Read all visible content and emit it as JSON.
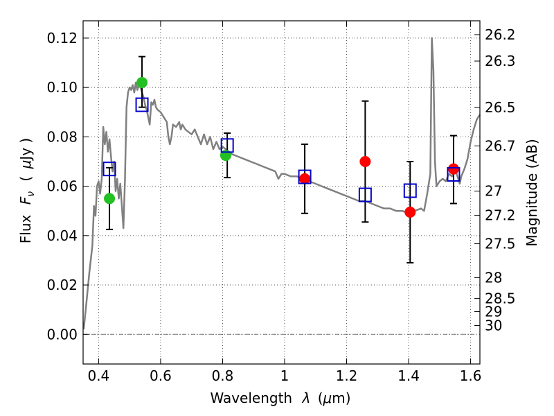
{
  "chart_data": {
    "type": "scatter",
    "xlabel_main": "Wavelength",
    "xlabel_symbol": "λ",
    "xlabel_unit_open": "(",
    "xlabel_unit_mu": "μ",
    "xlabel_unit_rest": "m)",
    "ylabel_main": "Flux",
    "ylabel_symbol": "F",
    "ylabel_subscript": "ν",
    "ylabel_unit_open": "(",
    "ylabel_unit_mu": "μ",
    "ylabel_unit_rest": "Jy )",
    "y2label": "Magnitude (AB)",
    "xlim": [
      0.35,
      1.63
    ],
    "ylim": [
      -0.012,
      0.127
    ],
    "grid": true,
    "x_ticks": [
      {
        "value": 0.4,
        "label": "0.4"
      },
      {
        "value": 0.6,
        "label": "0.6"
      },
      {
        "value": 0.8,
        "label": "0.8"
      },
      {
        "value": 1.0,
        "label": "1"
      },
      {
        "value": 1.2,
        "label": "1.2"
      },
      {
        "value": 1.4,
        "label": "1.4"
      },
      {
        "value": 1.6,
        "label": "1.6"
      }
    ],
    "y_ticks": [
      {
        "value": 0.0,
        "label": "0.00"
      },
      {
        "value": 0.02,
        "label": "0.02"
      },
      {
        "value": 0.04,
        "label": "0.04"
      },
      {
        "value": 0.06,
        "label": "0.06"
      },
      {
        "value": 0.08,
        "label": "0.08"
      },
      {
        "value": 0.1,
        "label": "0.10"
      },
      {
        "value": 0.12,
        "label": "0.12"
      }
    ],
    "mag_ticks": [
      {
        "flux": 0.1214,
        "label": "26.2"
      },
      {
        "flux": 0.1107,
        "label": "26.3"
      },
      {
        "flux": 0.0919,
        "label": "26.5"
      },
      {
        "flux": 0.0763,
        "label": "26.7"
      },
      {
        "flux": 0.058,
        "label": "27"
      },
      {
        "flux": 0.0482,
        "label": "27.2"
      },
      {
        "flux": 0.0367,
        "label": "27.5"
      },
      {
        "flux": 0.023,
        "label": "28"
      },
      {
        "flux": 0.0145,
        "label": "28.5"
      },
      {
        "flux": 0.0092,
        "label": "29"
      },
      {
        "flux": 0.0036,
        "label": "30"
      }
    ],
    "series": [
      {
        "name": "model SED",
        "kind": "line",
        "color": "#808080",
        "points": [
          [
            0.352,
            0.002
          ],
          [
            0.36,
            0.012
          ],
          [
            0.37,
            0.025
          ],
          [
            0.38,
            0.036
          ],
          [
            0.385,
            0.052
          ],
          [
            0.39,
            0.048
          ],
          [
            0.395,
            0.06
          ],
          [
            0.4,
            0.062
          ],
          [
            0.405,
            0.057
          ],
          [
            0.41,
            0.063
          ],
          [
            0.415,
            0.084
          ],
          [
            0.42,
            0.077
          ],
          [
            0.425,
            0.082
          ],
          [
            0.43,
            0.074
          ],
          [
            0.435,
            0.079
          ],
          [
            0.44,
            0.072
          ],
          [
            0.445,
            0.066
          ],
          [
            0.45,
            0.07
          ],
          [
            0.455,
            0.058
          ],
          [
            0.46,
            0.063
          ],
          [
            0.465,
            0.055
          ],
          [
            0.47,
            0.061
          ],
          [
            0.475,
            0.052
          ],
          [
            0.48,
            0.043
          ],
          [
            0.485,
            0.062
          ],
          [
            0.49,
            0.092
          ],
          [
            0.495,
            0.098
          ],
          [
            0.5,
            0.1
          ],
          [
            0.505,
            0.099
          ],
          [
            0.51,
            0.101
          ],
          [
            0.515,
            0.098
          ],
          [
            0.52,
            0.102
          ],
          [
            0.525,
            0.099
          ],
          [
            0.53,
            0.101
          ],
          [
            0.535,
            0.1
          ],
          [
            0.54,
            0.098
          ],
          [
            0.545,
            0.096
          ],
          [
            0.55,
            0.093
          ],
          [
            0.555,
            0.091
          ],
          [
            0.56,
            0.088
          ],
          [
            0.565,
            0.085
          ],
          [
            0.57,
            0.094
          ],
          [
            0.575,
            0.093
          ],
          [
            0.58,
            0.095
          ],
          [
            0.585,
            0.092
          ],
          [
            0.59,
            0.091
          ],
          [
            0.6,
            0.09
          ],
          [
            0.61,
            0.088
          ],
          [
            0.62,
            0.086
          ],
          [
            0.625,
            0.08
          ],
          [
            0.63,
            0.077
          ],
          [
            0.635,
            0.08
          ],
          [
            0.64,
            0.085
          ],
          [
            0.65,
            0.084
          ],
          [
            0.66,
            0.086
          ],
          [
            0.665,
            0.083
          ],
          [
            0.67,
            0.085
          ],
          [
            0.68,
            0.083
          ],
          [
            0.69,
            0.082
          ],
          [
            0.7,
            0.081
          ],
          [
            0.71,
            0.083
          ],
          [
            0.72,
            0.08
          ],
          [
            0.73,
            0.077
          ],
          [
            0.74,
            0.081
          ],
          [
            0.75,
            0.077
          ],
          [
            0.76,
            0.08
          ],
          [
            0.77,
            0.075
          ],
          [
            0.78,
            0.078
          ],
          [
            0.79,
            0.075
          ],
          [
            0.8,
            0.076
          ],
          [
            0.81,
            0.075
          ],
          [
            0.82,
            0.074
          ],
          [
            0.83,
            0.073
          ],
          [
            0.85,
            0.072
          ],
          [
            0.87,
            0.071
          ],
          [
            0.89,
            0.07
          ],
          [
            0.91,
            0.069
          ],
          [
            0.93,
            0.068
          ],
          [
            0.95,
            0.067
          ],
          [
            0.97,
            0.066
          ],
          [
            0.98,
            0.063
          ],
          [
            0.99,
            0.065
          ],
          [
            1.0,
            0.065
          ],
          [
            1.02,
            0.064
          ],
          [
            1.04,
            0.064
          ],
          [
            1.06,
            0.063
          ],
          [
            1.08,
            0.062
          ],
          [
            1.1,
            0.061
          ],
          [
            1.12,
            0.06
          ],
          [
            1.14,
            0.059
          ],
          [
            1.16,
            0.058
          ],
          [
            1.18,
            0.057
          ],
          [
            1.2,
            0.056
          ],
          [
            1.22,
            0.055
          ],
          [
            1.24,
            0.054
          ],
          [
            1.26,
            0.054
          ],
          [
            1.28,
            0.053
          ],
          [
            1.3,
            0.052
          ],
          [
            1.32,
            0.051
          ],
          [
            1.34,
            0.051
          ],
          [
            1.36,
            0.05
          ],
          [
            1.38,
            0.05
          ],
          [
            1.4,
            0.049
          ],
          [
            1.42,
            0.05
          ],
          [
            1.44,
            0.051
          ],
          [
            1.45,
            0.05
          ],
          [
            1.46,
            0.057
          ],
          [
            1.47,
            0.065
          ],
          [
            1.475,
            0.12
          ],
          [
            1.48,
            0.107
          ],
          [
            1.485,
            0.07
          ],
          [
            1.49,
            0.06
          ],
          [
            1.5,
            0.062
          ],
          [
            1.51,
            0.063
          ],
          [
            1.52,
            0.062
          ],
          [
            1.53,
            0.065
          ],
          [
            1.54,
            0.064
          ],
          [
            1.55,
            0.067
          ],
          [
            1.56,
            0.063
          ],
          [
            1.565,
            0.061
          ],
          [
            1.57,
            0.064
          ],
          [
            1.58,
            0.067
          ],
          [
            1.59,
            0.071
          ],
          [
            1.6,
            0.078
          ],
          [
            1.61,
            0.083
          ],
          [
            1.62,
            0.087
          ],
          [
            1.63,
            0.089
          ]
        ]
      },
      {
        "name": "observed (green)",
        "kind": "scatter",
        "color": "#22c022",
        "x": [
          0.435,
          0.54,
          0.81
        ],
        "y": [
          0.055,
          0.102,
          0.0725
        ]
      },
      {
        "name": "observed (red)",
        "kind": "scatter",
        "color": "#ff0000",
        "x": [
          1.065,
          1.26,
          1.405,
          1.545
        ],
        "y": [
          0.063,
          0.07,
          0.0495,
          0.067
        ]
      },
      {
        "name": "model photometry",
        "kind": "scatter",
        "marker": "square",
        "color": "#0000cc",
        "x": [
          0.435,
          0.54,
          0.815,
          1.065,
          1.26,
          1.405,
          1.545
        ],
        "y": [
          0.067,
          0.093,
          0.0765,
          0.0638,
          0.0565,
          0.0582,
          0.0648
        ]
      }
    ],
    "error_bars": [
      {
        "x": 0.435,
        "low": 0.0425,
        "high": 0.0675
      },
      {
        "x": 0.54,
        "low": 0.092,
        "high": 0.1125
      },
      {
        "x": 0.815,
        "low": 0.0635,
        "high": 0.0815
      },
      {
        "x": 1.065,
        "low": 0.049,
        "high": 0.077
      },
      {
        "x": 1.26,
        "low": 0.0455,
        "high": 0.0945
      },
      {
        "x": 1.405,
        "low": 0.029,
        "high": 0.07
      },
      {
        "x": 1.545,
        "low": 0.053,
        "high": 0.0805
      }
    ]
  }
}
